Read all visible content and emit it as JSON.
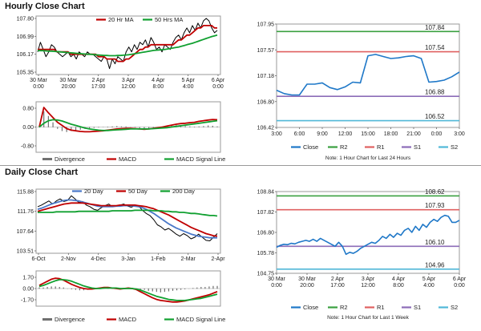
{
  "sections": {
    "hourly_title": "Hourly Close Chart",
    "daily_title": "Daily Close Chart"
  },
  "colors": {
    "price": "#000000",
    "ma_short": "#c00000",
    "ma_long": "#10a030",
    "ma_day20": "#4a78c8",
    "close": "#1f78c8",
    "r2": "#3aa040",
    "r1": "#e06060",
    "s1": "#8c6cb8",
    "s2": "#50b8d8",
    "divergence": "#707070",
    "macd": "#c00000",
    "signal": "#10a030"
  },
  "chart_data": [
    {
      "id": "hourly-price",
      "type": "line",
      "legend": [
        "20 Hr MA",
        "50 Hrs MA"
      ],
      "yticks": [
        "107.80",
        "106.99",
        "106.17",
        "105.35"
      ],
      "ylim": [
        105.35,
        107.8
      ],
      "xticks": [
        [
          "30 Mar",
          "0:00"
        ],
        [
          "30 Mar",
          "20:00"
        ],
        [
          "2 Apr",
          "17:00"
        ],
        [
          "3 Apr",
          "12:00"
        ],
        [
          "4 Apr",
          "8:00"
        ],
        [
          "5 Apr",
          "4:00"
        ],
        [
          "6 Apr",
          "0:00"
        ]
      ],
      "series": [
        {
          "key": "price",
          "values": [
            106.3,
            106.7,
            106.4,
            106.1,
            106.3,
            106.6,
            106.5,
            106.3,
            106.2,
            106.1,
            106.2,
            106.3,
            106.1,
            106.2,
            106.0,
            106.3,
            106.2,
            106.1,
            106.3,
            106.2,
            106.2,
            106.1,
            106.0,
            105.9,
            106.1,
            106.0,
            105.6,
            106.0,
            105.8,
            106.1,
            106.0,
            105.9,
            106.3,
            106.5,
            106.3,
            106.6,
            106.4,
            106.7,
            106.6,
            106.8,
            106.5,
            106.9,
            106.7,
            106.4,
            106.5,
            106.3,
            106.6,
            106.5,
            106.4,
            106.7,
            106.9,
            107.0,
            106.8,
            107.1,
            107.3,
            107.1,
            107.4,
            107.2,
            107.5,
            107.3,
            107.6,
            107.7,
            107.6,
            107.3,
            107.1,
            107.2
          ]
        },
        {
          "key": "ma_short",
          "name": "20 Hr MA",
          "values": [
            106.4,
            106.4,
            106.4,
            106.4,
            106.4,
            106.4,
            106.4,
            106.3,
            106.3,
            106.3,
            106.3,
            106.3,
            106.2,
            106.2,
            106.2,
            106.2,
            106.2,
            106.2,
            106.2,
            106.2,
            106.2,
            106.2,
            106.1,
            106.1,
            106.1,
            106.0,
            106.0,
            106.0,
            106.0,
            105.9,
            105.9,
            105.9,
            106.0,
            106.0,
            106.1,
            106.2,
            106.3,
            106.4,
            106.4,
            106.5,
            106.5,
            106.6,
            106.6,
            106.6,
            106.6,
            106.6,
            106.6,
            106.6,
            106.6,
            106.6,
            106.7,
            106.8,
            106.8,
            106.9,
            107.0,
            107.0,
            107.1,
            107.2,
            107.3,
            107.3,
            107.4,
            107.4,
            107.4,
            107.4,
            107.3,
            107.3
          ]
        },
        {
          "key": "ma_long",
          "name": "50 Hrs MA",
          "values": [
            106.35,
            106.35,
            106.35,
            106.34,
            106.33,
            106.33,
            106.32,
            106.31,
            106.3,
            106.29,
            106.28,
            106.27,
            106.26,
            106.25,
            106.24,
            106.23,
            106.22,
            106.21,
            106.2,
            106.2,
            106.19,
            106.18,
            106.17,
            106.16,
            106.15,
            106.15,
            106.14,
            106.14,
            106.14,
            106.15,
            106.15,
            106.16,
            106.17,
            106.18,
            106.2,
            106.22,
            106.24,
            106.26,
            106.28,
            106.3,
            106.32,
            106.34,
            106.36,
            106.37,
            106.38,
            106.39,
            106.4,
            106.42,
            106.44,
            106.46,
            106.48,
            106.5,
            106.53,
            106.56,
            106.6,
            106.63,
            106.66,
            106.7,
            106.74,
            106.78,
            106.82,
            106.86,
            106.9,
            106.94,
            106.97,
            107.0
          ]
        }
      ]
    },
    {
      "id": "hourly-macd",
      "type": "line",
      "legend": [
        "Divergence",
        "MACD",
        "MACD Signal Line"
      ],
      "yticks": [
        "0.80",
        "0.00",
        "-0.80"
      ],
      "ylim": [
        -0.8,
        0.8
      ],
      "series": [
        {
          "key": "divergence",
          "name": "Divergence",
          "values": [
            0.0,
            0.5,
            0.35,
            0.15,
            -0.05,
            -0.12,
            -0.15,
            -0.12,
            -0.1,
            -0.08,
            -0.05,
            -0.03,
            -0.02,
            -0.01,
            0.0,
            0.01,
            0.02,
            0.03,
            0.02,
            0.02,
            0.0,
            -0.01,
            -0.03,
            -0.04,
            -0.03,
            -0.02,
            0.0,
            0.02,
            0.04,
            0.05,
            0.06,
            0.05,
            0.03,
            0.02,
            0.01,
            0.02,
            0.03,
            0.05,
            0.04,
            0.02
          ]
        },
        {
          "key": "macd",
          "name": "MACD",
          "values": [
            0.0,
            0.62,
            0.45,
            0.3,
            0.15,
            0.05,
            -0.05,
            -0.1,
            -0.12,
            -0.14,
            -0.15,
            -0.15,
            -0.14,
            -0.13,
            -0.12,
            -0.1,
            -0.08,
            -0.06,
            -0.05,
            -0.04,
            -0.04,
            -0.05,
            -0.06,
            -0.07,
            -0.06,
            -0.04,
            -0.02,
            0.0,
            0.03,
            0.06,
            0.09,
            0.11,
            0.12,
            0.14,
            0.15,
            0.18,
            0.2,
            0.22,
            0.24,
            0.23
          ]
        },
        {
          "key": "signal",
          "name": "MACD Signal Line",
          "values": [
            0.0,
            0.12,
            0.2,
            0.23,
            0.22,
            0.19,
            0.14,
            0.09,
            0.05,
            0.01,
            -0.03,
            -0.06,
            -0.08,
            -0.1,
            -0.11,
            -0.11,
            -0.1,
            -0.09,
            -0.08,
            -0.07,
            -0.06,
            -0.06,
            -0.06,
            -0.06,
            -0.06,
            -0.05,
            -0.04,
            -0.03,
            -0.02,
            0.0,
            0.02,
            0.04,
            0.06,
            0.08,
            0.1,
            0.12,
            0.14,
            0.16,
            0.18,
            0.2
          ]
        }
      ]
    },
    {
      "id": "hourly-pivot",
      "type": "line",
      "yticks": [
        "107.95",
        "107.57",
        "107.18",
        "106.80",
        "106.42"
      ],
      "ylim": [
        106.42,
        107.95
      ],
      "xticks": [
        "3:00",
        "6:00",
        "9:00",
        "12:00",
        "15:00",
        "18:00",
        "21:00",
        "0:00",
        "3:00"
      ],
      "levels": {
        "R2": "107.84",
        "R1": "107.54",
        "S1": "106.88",
        "S2": "106.52"
      },
      "level_values": {
        "R2": 107.84,
        "R1": 107.54,
        "S1": 106.88,
        "S2": 106.52
      },
      "x": [
        0,
        1,
        2,
        3,
        4,
        5,
        6,
        7,
        8,
        9,
        10,
        11,
        12,
        13,
        14,
        15,
        16,
        17,
        18,
        19,
        20,
        21,
        22,
        23,
        24
      ],
      "series": [
        {
          "key": "close",
          "name": "Close",
          "values": [
            106.97,
            106.92,
            106.9,
            106.9,
            107.06,
            107.06,
            107.08,
            107.01,
            106.98,
            107.02,
            107.09,
            107.08,
            107.48,
            107.5,
            107.47,
            107.44,
            107.45,
            107.47,
            107.48,
            107.44,
            107.09,
            107.1,
            107.12,
            107.17,
            107.24
          ]
        }
      ],
      "legend": [
        "Close",
        "R2",
        "R1",
        "S1",
        "S2"
      ],
      "note": "Note: 1 Hour Chart for Last 24 Hours"
    },
    {
      "id": "daily-price",
      "type": "line",
      "legend": [
        "20 Day",
        "50 Day",
        "200 Day"
      ],
      "yticks": [
        "115.88",
        "111.76",
        "107.64",
        "103.51"
      ],
      "ylim": [
        103.51,
        115.88
      ],
      "xticks": [
        "6-Oct",
        "2-Nov",
        "4-Dec",
        "3-Jan",
        "1-Feb",
        "2-Mar",
        "2-Apr"
      ],
      "series": [
        {
          "key": "price",
          "values": [
            112.5,
            112.8,
            113.2,
            113.6,
            113.0,
            113.6,
            114.0,
            113.5,
            113.7,
            114.6,
            114.0,
            113.3,
            113.5,
            112.8,
            112.5,
            112.0,
            111.8,
            112.3,
            112.7,
            113.0,
            112.5,
            112.6,
            112.8,
            113.0,
            112.6,
            112.4,
            112.7,
            112.6,
            111.8,
            111.2,
            110.8,
            110.0,
            109.0,
            108.6,
            108.0,
            108.3,
            107.8,
            107.2,
            106.8,
            107.3,
            106.9,
            106.3,
            106.6,
            107.2,
            106.6,
            106.0,
            105.9,
            106.6,
            107.3
          ]
        },
        {
          "key": "ma_day20",
          "name": "20 Day",
          "values": [
            112.0,
            112.2,
            112.5,
            112.8,
            113.1,
            113.3,
            113.5,
            113.7,
            113.8,
            113.8,
            113.7,
            113.6,
            113.4,
            113.2,
            113.0,
            112.8,
            112.6,
            112.5,
            112.5,
            112.5,
            112.5,
            112.6,
            112.6,
            112.7,
            112.7,
            112.7,
            112.6,
            112.5,
            112.3,
            112.0,
            111.6,
            111.2,
            110.7,
            110.2,
            109.7,
            109.2,
            108.8,
            108.4,
            108.1,
            107.8,
            107.5,
            107.2,
            107.0,
            106.8,
            106.7,
            106.6,
            106.5,
            106.5,
            106.5
          ]
        },
        {
          "key": "ma_short",
          "name": "50 Day",
          "values": [
            111.6,
            111.8,
            112.0,
            112.2,
            112.4,
            112.6,
            112.8,
            113.0,
            113.1,
            113.2,
            113.2,
            113.2,
            113.2,
            113.1,
            113.0,
            112.9,
            112.8,
            112.7,
            112.7,
            112.7,
            112.7,
            112.7,
            112.8,
            112.8,
            112.8,
            112.8,
            112.8,
            112.7,
            112.6,
            112.5,
            112.3,
            112.1,
            111.8,
            111.5,
            111.2,
            110.9,
            110.5,
            110.1,
            109.7,
            109.3,
            108.9,
            108.5,
            108.2,
            107.9,
            107.6,
            107.3,
            107.1,
            106.9,
            106.8
          ]
        },
        {
          "key": "ma_long",
          "name": "200 Day",
          "values": [
            111.4,
            111.4,
            111.4,
            111.4,
            111.4,
            111.5,
            111.5,
            111.5,
            111.5,
            111.5,
            111.5,
            111.6,
            111.6,
            111.6,
            111.6,
            111.6,
            111.6,
            111.6,
            111.6,
            111.6,
            111.7,
            111.7,
            111.7,
            111.7,
            111.7,
            111.7,
            111.8,
            111.8,
            111.8,
            111.8,
            111.8,
            111.7,
            111.7,
            111.7,
            111.6,
            111.6,
            111.5,
            111.5,
            111.4,
            111.4,
            111.3,
            111.2,
            111.2,
            111.1,
            111.0,
            110.9,
            110.8,
            110.8,
            110.7
          ]
        }
      ]
    },
    {
      "id": "daily-macd",
      "type": "line",
      "legend": [
        "Divergence",
        "MACD",
        "MACD Signal Line"
      ],
      "yticks": [
        "1.70",
        "0.00",
        "-1.70"
      ],
      "ylim": [
        -1.7,
        1.7
      ],
      "series": [
        {
          "key": "divergence",
          "name": "Divergence",
          "values": [
            0.1,
            0.1,
            0.15,
            0.2,
            0.2,
            0.15,
            0.1,
            0.0,
            -0.05,
            -0.1,
            -0.15,
            -0.15,
            -0.1,
            -0.05,
            0.0,
            0.05,
            0.1,
            0.1,
            0.1,
            0.05,
            0.0,
            0.0,
            0.05,
            0.05,
            0.0,
            -0.05,
            -0.1,
            -0.2,
            -0.25,
            -0.3,
            -0.35,
            -0.3,
            -0.25,
            -0.2,
            -0.15,
            -0.1,
            -0.05,
            0.0,
            0.05,
            0.1,
            0.15,
            0.15,
            0.2,
            0.25,
            0.25
          ]
        },
        {
          "key": "macd",
          "name": "MACD",
          "values": [
            0.3,
            0.5,
            0.7,
            0.9,
            1.0,
            0.95,
            0.8,
            0.6,
            0.4,
            0.25,
            0.1,
            0.0,
            -0.05,
            -0.05,
            0.0,
            0.05,
            0.1,
            0.1,
            0.05,
            0.0,
            -0.05,
            0.0,
            0.05,
            0.0,
            -0.1,
            -0.3,
            -0.5,
            -0.7,
            -0.9,
            -1.05,
            -1.15,
            -1.2,
            -1.25,
            -1.3,
            -1.3,
            -1.25,
            -1.2,
            -1.1,
            -1.0,
            -0.9,
            -0.8,
            -0.7,
            -0.6,
            -0.45,
            -0.3
          ]
        },
        {
          "key": "signal",
          "name": "MACD Signal Line",
          "values": [
            0.2,
            0.3,
            0.45,
            0.6,
            0.75,
            0.85,
            0.85,
            0.8,
            0.7,
            0.55,
            0.4,
            0.25,
            0.15,
            0.05,
            0.0,
            0.0,
            0.05,
            0.05,
            0.05,
            0.05,
            0.0,
            0.0,
            0.0,
            0.0,
            -0.05,
            -0.15,
            -0.3,
            -0.45,
            -0.6,
            -0.75,
            -0.85,
            -0.95,
            -1.05,
            -1.1,
            -1.15,
            -1.15,
            -1.15,
            -1.1,
            -1.05,
            -1.0,
            -0.95,
            -0.85,
            -0.75,
            -0.65,
            -0.55
          ]
        }
      ]
    },
    {
      "id": "daily-pivot",
      "type": "line",
      "yticks": [
        "108.84",
        "107.82",
        "106.80",
        "105.78",
        "104.75"
      ],
      "ylim": [
        104.75,
        108.84
      ],
      "xticks": [
        [
          "30 Mar",
          "0:00"
        ],
        [
          "30 Mar",
          "20:00"
        ],
        [
          "2 Apr",
          "17:00"
        ],
        [
          "3 Apr",
          "12:00"
        ],
        [
          "4 Apr",
          "8:00"
        ],
        [
          "5 Apr",
          "4:00"
        ],
        [
          "6 Apr",
          "0:00"
        ]
      ],
      "levels": {
        "R2": "108.62",
        "R1": "107.93",
        "S1": "106.10",
        "S2": "104.96"
      },
      "level_values": {
        "R2": 108.62,
        "R1": 107.93,
        "S1": 106.1,
        "S2": 104.96
      },
      "series": [
        {
          "key": "close",
          "name": "Close",
          "values": [
            106.05,
            106.15,
            106.2,
            106.18,
            106.25,
            106.22,
            106.3,
            106.35,
            106.4,
            106.35,
            106.45,
            106.35,
            106.5,
            106.4,
            106.3,
            106.2,
            106.1,
            106.3,
            106.1,
            105.7,
            105.8,
            105.75,
            105.85,
            106.0,
            106.1,
            106.2,
            106.3,
            106.25,
            106.4,
            106.6,
            106.5,
            106.7,
            106.55,
            106.75,
            106.65,
            106.9,
            107.0,
            106.8,
            107.1,
            106.9,
            107.2,
            107.05,
            107.3,
            107.45,
            107.35,
            107.55,
            107.65,
            107.6,
            107.3,
            107.3,
            107.4
          ]
        }
      ],
      "legend": [
        "Close",
        "R2",
        "R1",
        "S1",
        "S2"
      ],
      "note": "Note: 1 Hour Chart for Last 1 Week"
    }
  ]
}
